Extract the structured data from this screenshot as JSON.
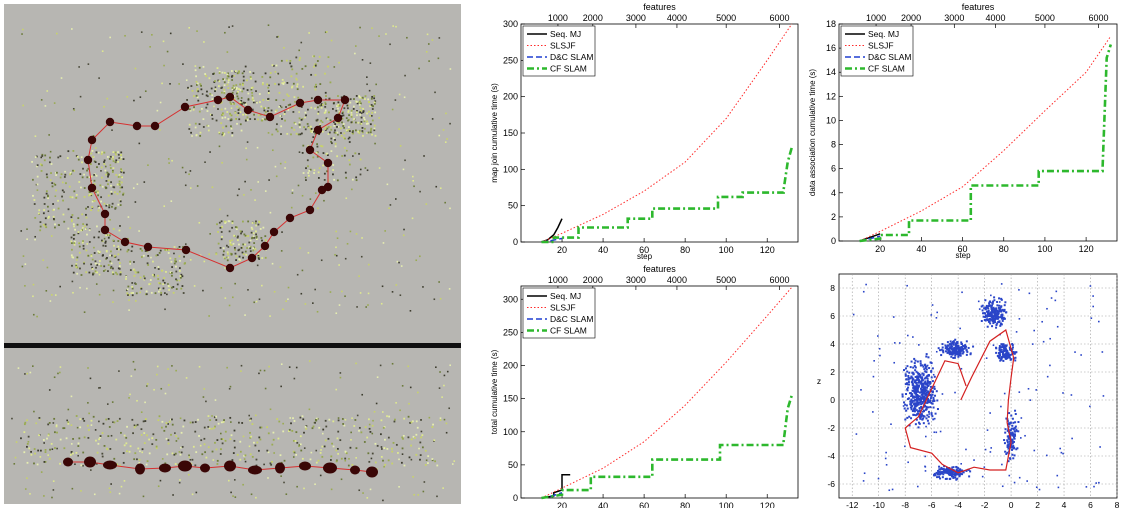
{
  "chart_data": [
    {
      "type": "line",
      "panel": "map-join",
      "xlabel": "step",
      "ylabel": "map join cumulative time (s)",
      "top_axis_label": "features",
      "xlim": [
        0,
        135
      ],
      "ylim": [
        0,
        300
      ],
      "x_ticks": [
        20,
        40,
        60,
        80,
        100,
        120
      ],
      "y_ticks": [
        0,
        50,
        100,
        150,
        200,
        250,
        300
      ],
      "top_ticks": [
        1000,
        2000,
        3000,
        4000,
        5000,
        6000
      ],
      "top_tick_steps": [
        18,
        35,
        56,
        76,
        100,
        126
      ],
      "grid": false,
      "legend_position": "top-left",
      "series": [
        {
          "name": "Seq. MJ",
          "color": "#000000",
          "dash": "solid",
          "x": [
            10,
            13,
            16,
            18,
            20
          ],
          "y": [
            0,
            3,
            10,
            20,
            32
          ]
        },
        {
          "name": "SLSJF",
          "color": "#ff2a2a",
          "dash": "dotted",
          "x": [
            10,
            20,
            40,
            60,
            80,
            100,
            120,
            132
          ],
          "y": [
            0,
            12,
            38,
            70,
            110,
            170,
            250,
            300
          ]
        },
        {
          "name": "D&C SLAM",
          "color": "#1f3fd0",
          "dash": "dashed",
          "x": [
            10,
            15,
            20
          ],
          "y": [
            0,
            2,
            5
          ]
        },
        {
          "name": "CF SLAM",
          "color": "#2db82d",
          "dash": "dashdot",
          "x": [
            10,
            16,
            16,
            28,
            28,
            52,
            52,
            64,
            64,
            96,
            96,
            108,
            108,
            128,
            128,
            130,
            132
          ],
          "y": [
            0,
            0,
            6,
            6,
            20,
            20,
            32,
            32,
            46,
            46,
            62,
            62,
            68,
            68,
            72,
            110,
            130
          ]
        }
      ]
    },
    {
      "type": "line",
      "panel": "data-association",
      "xlabel": "step",
      "ylabel": "data association cumulative time (s)",
      "top_axis_label": "features",
      "xlim": [
        0,
        135
      ],
      "ylim": [
        0,
        18
      ],
      "x_ticks": [
        20,
        40,
        60,
        80,
        100,
        120
      ],
      "y_ticks": [
        0,
        2,
        4,
        6,
        8,
        10,
        12,
        14,
        16,
        18
      ],
      "top_ticks": [
        1000,
        2000,
        3000,
        4000,
        5000,
        6000
      ],
      "top_tick_steps": [
        18,
        35,
        56,
        76,
        100,
        126
      ],
      "grid": false,
      "legend_position": "top-left",
      "series": [
        {
          "name": "Seq. MJ",
          "color": "#000000",
          "dash": "solid",
          "x": [
            10,
            15,
            20
          ],
          "y": [
            0,
            0.3,
            0.6
          ]
        },
        {
          "name": "SLSJF",
          "color": "#ff2a2a",
          "dash": "dotted",
          "x": [
            10,
            20,
            40,
            60,
            80,
            100,
            120,
            132
          ],
          "y": [
            0,
            0.8,
            2.5,
            4.5,
            7.5,
            10.8,
            14,
            17
          ]
        },
        {
          "name": "D&C SLAM",
          "color": "#1f3fd0",
          "dash": "dashed",
          "x": [
            10,
            15,
            20
          ],
          "y": [
            0,
            0.2,
            0.4
          ]
        },
        {
          "name": "CF SLAM",
          "color": "#2db82d",
          "dash": "dashdot",
          "x": [
            10,
            20,
            20,
            34,
            34,
            64,
            64,
            97,
            97,
            128,
            128,
            130,
            132
          ],
          "y": [
            0,
            0.2,
            0.5,
            0.5,
            1.7,
            1.7,
            4.6,
            4.6,
            5.8,
            5.8,
            6.1,
            15.2,
            16.3
          ]
        }
      ]
    },
    {
      "type": "line",
      "panel": "total-time",
      "xlabel": "step",
      "ylabel": "total cumulative time (s)",
      "top_axis_label": "features",
      "xlim": [
        0,
        135
      ],
      "ylim": [
        0,
        320
      ],
      "x_ticks": [
        20,
        40,
        60,
        80,
        100,
        120
      ],
      "y_ticks": [
        0,
        50,
        100,
        150,
        200,
        250,
        300
      ],
      "top_ticks": [
        1000,
        2000,
        3000,
        4000,
        5000,
        6000
      ],
      "top_tick_steps": [
        18,
        35,
        56,
        76,
        100,
        126
      ],
      "grid": false,
      "legend_position": "top-left",
      "series": [
        {
          "name": "Seq. MJ",
          "color": "#000000",
          "dash": "solid",
          "x": [
            10,
            16,
            16,
            20,
            20,
            24,
            24
          ],
          "y": [
            0,
            3,
            8,
            12,
            35,
            35,
            35
          ]
        },
        {
          "name": "SLSJF",
          "color": "#ff2a2a",
          "dash": "dotted",
          "x": [
            10,
            20,
            40,
            60,
            80,
            100,
            120,
            132
          ],
          "y": [
            0,
            15,
            45,
            85,
            140,
            205,
            275,
            318
          ]
        },
        {
          "name": "D&C SLAM",
          "color": "#1f3fd0",
          "dash": "dashed",
          "x": [
            10,
            15,
            20
          ],
          "y": [
            0,
            3,
            8
          ]
        },
        {
          "name": "CF SLAM",
          "color": "#2db82d",
          "dash": "dashdot",
          "x": [
            10,
            20,
            20,
            34,
            34,
            64,
            64,
            97,
            97,
            128,
            128,
            130,
            132
          ],
          "y": [
            0,
            5,
            12,
            12,
            32,
            32,
            58,
            58,
            80,
            80,
            85,
            135,
            155
          ]
        }
      ]
    },
    {
      "type": "scatter",
      "panel": "map-xz",
      "xlabel": "",
      "ylabel": "z",
      "xlim": [
        -13,
        8
      ],
      "ylim": [
        -7,
        9
      ],
      "x_ticks": [
        -12,
        -10,
        -8,
        -6,
        -4,
        -2,
        0,
        2,
        4,
        6,
        8
      ],
      "y_ticks": [
        -6,
        -4,
        -2,
        0,
        2,
        4,
        6,
        8
      ],
      "grid": true,
      "point_color": "#2a45c8",
      "trajectory_color": "#d42020",
      "clusters": [
        {
          "x": -6.8,
          "y": 0.6,
          "spread_x": 1.6,
          "spread_y": 3.2,
          "count": 420
        },
        {
          "x": -4.2,
          "y": 3.6,
          "spread_x": 1.4,
          "spread_y": 0.8,
          "count": 180
        },
        {
          "x": -1.2,
          "y": 6.2,
          "spread_x": 1.3,
          "spread_y": 1.3,
          "count": 200
        },
        {
          "x": -0.4,
          "y": 3.4,
          "spread_x": 1.0,
          "spread_y": 0.9,
          "count": 120
        },
        {
          "x": 0.0,
          "y": -2.6,
          "spread_x": 0.7,
          "spread_y": 2.2,
          "count": 110
        },
        {
          "x": -4.6,
          "y": -5.2,
          "spread_x": 1.8,
          "spread_y": 0.6,
          "count": 140
        }
      ],
      "trajectory": {
        "x": [
          -3.8,
          -3.0,
          -1.6,
          -0.4,
          0.2,
          0.0,
          -0.2,
          -0.3,
          0.0,
          -0.4,
          -1.6,
          -2.8,
          -4.0,
          -5.2,
          -6.0,
          -7.6,
          -8.0,
          -7.0,
          -5.0,
          -4.0,
          -3.4
        ],
        "y": [
          0.0,
          1.6,
          4.2,
          5.0,
          3.0,
          1.6,
          0.0,
          -1.6,
          -3.0,
          -5.0,
          -5.0,
          -4.8,
          -5.2,
          -4.6,
          -3.8,
          -3.4,
          -2.0,
          -1.2,
          2.8,
          2.6,
          1.0
        ]
      }
    }
  ]
}
